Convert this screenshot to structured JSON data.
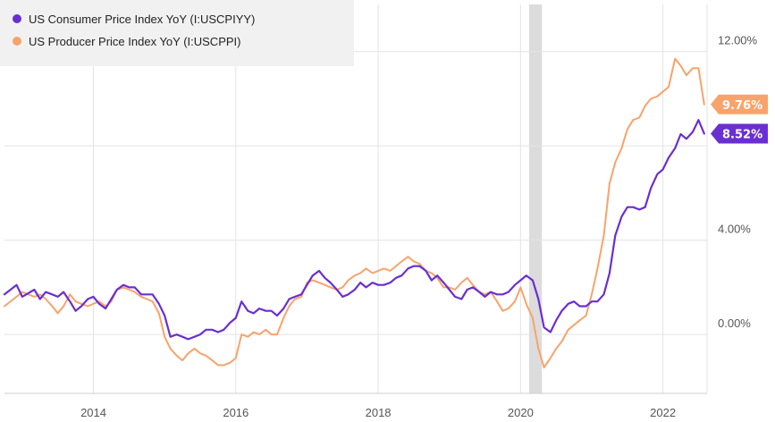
{
  "chart_data": {
    "type": "line",
    "title": "",
    "xlabel": "",
    "ylabel": "",
    "xlim": [
      2012.75,
      2022.62
    ],
    "ylim": [
      -2.5,
      14.0
    ],
    "grid": true,
    "legend_position": "top-left",
    "x_ticks": [
      {
        "value": 2014,
        "label": "2014"
      },
      {
        "value": 2016,
        "label": "2016"
      },
      {
        "value": 2018,
        "label": "2018"
      },
      {
        "value": 2020,
        "label": "2020"
      },
      {
        "value": 2022,
        "label": "2022"
      }
    ],
    "y_ticks": [
      {
        "value": 0,
        "label": "0.00%"
      },
      {
        "value": 4,
        "label": "4.00%"
      },
      {
        "value": 8,
        "label": ""
      },
      {
        "value": 12,
        "label": "12.00%"
      }
    ],
    "shaded_ranges": [
      [
        2020.12,
        2020.3
      ]
    ],
    "series": [
      {
        "name": "US Consumer Price Index YoY (I:USCPIYY)",
        "color": "#6a2fd1",
        "last_value_label": "8.52%",
        "points": [
          [
            2012.75,
            1.7
          ],
          [
            2012.92,
            2.1
          ],
          [
            2013.0,
            1.6
          ],
          [
            2013.17,
            1.9
          ],
          [
            2013.25,
            1.5
          ],
          [
            2013.33,
            1.8
          ],
          [
            2013.42,
            1.7
          ],
          [
            2013.5,
            1.6
          ],
          [
            2013.58,
            1.8
          ],
          [
            2013.67,
            1.4
          ],
          [
            2013.75,
            1.0
          ],
          [
            2013.83,
            1.2
          ],
          [
            2013.92,
            1.5
          ],
          [
            2014.0,
            1.6
          ],
          [
            2014.08,
            1.3
          ],
          [
            2014.17,
            1.1
          ],
          [
            2014.25,
            1.5
          ],
          [
            2014.33,
            1.9
          ],
          [
            2014.42,
            2.1
          ],
          [
            2014.5,
            2.0
          ],
          [
            2014.58,
            2.0
          ],
          [
            2014.67,
            1.7
          ],
          [
            2014.75,
            1.7
          ],
          [
            2014.83,
            1.7
          ],
          [
            2014.92,
            1.3
          ],
          [
            2015.0,
            0.8
          ],
          [
            2015.08,
            -0.1
          ],
          [
            2015.17,
            0.0
          ],
          [
            2015.25,
            -0.1
          ],
          [
            2015.33,
            -0.2
          ],
          [
            2015.42,
            -0.1
          ],
          [
            2015.5,
            0.0
          ],
          [
            2015.58,
            0.2
          ],
          [
            2015.67,
            0.2
          ],
          [
            2015.75,
            0.1
          ],
          [
            2015.83,
            0.2
          ],
          [
            2015.92,
            0.5
          ],
          [
            2016.0,
            0.7
          ],
          [
            2016.08,
            1.4
          ],
          [
            2016.17,
            1.0
          ],
          [
            2016.25,
            0.9
          ],
          [
            2016.33,
            1.1
          ],
          [
            2016.42,
            1.0
          ],
          [
            2016.5,
            1.0
          ],
          [
            2016.58,
            0.8
          ],
          [
            2016.67,
            1.1
          ],
          [
            2016.75,
            1.5
          ],
          [
            2016.83,
            1.6
          ],
          [
            2016.92,
            1.7
          ],
          [
            2017.0,
            2.1
          ],
          [
            2017.08,
            2.5
          ],
          [
            2017.17,
            2.7
          ],
          [
            2017.25,
            2.4
          ],
          [
            2017.33,
            2.2
          ],
          [
            2017.42,
            1.9
          ],
          [
            2017.5,
            1.6
          ],
          [
            2017.58,
            1.7
          ],
          [
            2017.67,
            1.9
          ],
          [
            2017.75,
            2.2
          ],
          [
            2017.83,
            2.0
          ],
          [
            2017.92,
            2.2
          ],
          [
            2018.0,
            2.1
          ],
          [
            2018.08,
            2.1
          ],
          [
            2018.17,
            2.2
          ],
          [
            2018.25,
            2.4
          ],
          [
            2018.33,
            2.5
          ],
          [
            2018.42,
            2.8
          ],
          [
            2018.5,
            2.9
          ],
          [
            2018.58,
            2.9
          ],
          [
            2018.67,
            2.7
          ],
          [
            2018.75,
            2.3
          ],
          [
            2018.83,
            2.5
          ],
          [
            2018.92,
            2.2
          ],
          [
            2019.0,
            1.9
          ],
          [
            2019.08,
            1.6
          ],
          [
            2019.17,
            1.5
          ],
          [
            2019.25,
            1.9
          ],
          [
            2019.33,
            2.0
          ],
          [
            2019.42,
            1.8
          ],
          [
            2019.5,
            1.6
          ],
          [
            2019.58,
            1.8
          ],
          [
            2019.67,
            1.7
          ],
          [
            2019.75,
            1.7
          ],
          [
            2019.83,
            1.8
          ],
          [
            2019.92,
            2.1
          ],
          [
            2020.0,
            2.3
          ],
          [
            2020.08,
            2.5
          ],
          [
            2020.17,
            2.3
          ],
          [
            2020.25,
            1.5
          ],
          [
            2020.33,
            0.3
          ],
          [
            2020.42,
            0.1
          ],
          [
            2020.5,
            0.6
          ],
          [
            2020.58,
            1.0
          ],
          [
            2020.67,
            1.3
          ],
          [
            2020.75,
            1.4
          ],
          [
            2020.83,
            1.2
          ],
          [
            2020.92,
            1.2
          ],
          [
            2021.0,
            1.4
          ],
          [
            2021.08,
            1.4
          ],
          [
            2021.17,
            1.7
          ],
          [
            2021.25,
            2.6
          ],
          [
            2021.33,
            4.2
          ],
          [
            2021.42,
            5.0
          ],
          [
            2021.5,
            5.4
          ],
          [
            2021.58,
            5.4
          ],
          [
            2021.67,
            5.3
          ],
          [
            2021.75,
            5.4
          ],
          [
            2021.83,
            6.2
          ],
          [
            2021.92,
            6.8
          ],
          [
            2022.0,
            7.0
          ],
          [
            2022.08,
            7.5
          ],
          [
            2022.17,
            7.9
          ],
          [
            2022.25,
            8.5
          ],
          [
            2022.33,
            8.3
          ],
          [
            2022.42,
            8.6
          ],
          [
            2022.5,
            9.1
          ],
          [
            2022.58,
            8.52
          ]
        ]
      },
      {
        "name": "US Producer Price Index YoY (I:USCPPI)",
        "color": "#f7a36b",
        "last_value_label": "9.76%",
        "points": [
          [
            2012.75,
            1.2
          ],
          [
            2012.92,
            1.6
          ],
          [
            2013.0,
            1.8
          ],
          [
            2013.17,
            1.6
          ],
          [
            2013.25,
            1.7
          ],
          [
            2013.33,
            1.5
          ],
          [
            2013.42,
            1.2
          ],
          [
            2013.5,
            0.9
          ],
          [
            2013.58,
            1.2
          ],
          [
            2013.67,
            1.7
          ],
          [
            2013.75,
            1.4
          ],
          [
            2013.83,
            1.3
          ],
          [
            2013.92,
            1.2
          ],
          [
            2014.0,
            1.3
          ],
          [
            2014.08,
            1.4
          ],
          [
            2014.17,
            1.2
          ],
          [
            2014.25,
            1.4
          ],
          [
            2014.33,
            1.9
          ],
          [
            2014.42,
            2.0
          ],
          [
            2014.5,
            1.9
          ],
          [
            2014.58,
            1.8
          ],
          [
            2014.67,
            1.6
          ],
          [
            2014.75,
            1.5
          ],
          [
            2014.83,
            1.4
          ],
          [
            2014.92,
            0.9
          ],
          [
            2015.0,
            -0.1
          ],
          [
            2015.08,
            -0.6
          ],
          [
            2015.17,
            -0.9
          ],
          [
            2015.25,
            -1.1
          ],
          [
            2015.33,
            -0.8
          ],
          [
            2015.42,
            -0.6
          ],
          [
            2015.5,
            -0.8
          ],
          [
            2015.58,
            -0.9
          ],
          [
            2015.67,
            -1.1
          ],
          [
            2015.75,
            -1.3
          ],
          [
            2015.83,
            -1.3
          ],
          [
            2015.92,
            -1.2
          ],
          [
            2016.0,
            -1.0
          ],
          [
            2016.08,
            0.0
          ],
          [
            2016.17,
            -0.1
          ],
          [
            2016.25,
            0.1
          ],
          [
            2016.33,
            0.0
          ],
          [
            2016.42,
            0.2
          ],
          [
            2016.5,
            0.0
          ],
          [
            2016.58,
            0.0
          ],
          [
            2016.67,
            0.7
          ],
          [
            2016.75,
            1.2
          ],
          [
            2016.83,
            1.5
          ],
          [
            2016.92,
            1.6
          ],
          [
            2017.0,
            2.2
          ],
          [
            2017.08,
            2.3
          ],
          [
            2017.17,
            2.2
          ],
          [
            2017.25,
            2.1
          ],
          [
            2017.33,
            2.0
          ],
          [
            2017.42,
            1.9
          ],
          [
            2017.5,
            2.0
          ],
          [
            2017.58,
            2.3
          ],
          [
            2017.67,
            2.5
          ],
          [
            2017.75,
            2.6
          ],
          [
            2017.83,
            2.8
          ],
          [
            2017.92,
            2.6
          ],
          [
            2018.0,
            2.7
          ],
          [
            2018.08,
            2.8
          ],
          [
            2018.17,
            2.7
          ],
          [
            2018.25,
            2.9
          ],
          [
            2018.33,
            3.1
          ],
          [
            2018.42,
            3.3
          ],
          [
            2018.5,
            3.1
          ],
          [
            2018.58,
            3.0
          ],
          [
            2018.67,
            2.7
          ],
          [
            2018.75,
            2.6
          ],
          [
            2018.83,
            2.4
          ],
          [
            2018.92,
            2.0
          ],
          [
            2019.0,
            2.0
          ],
          [
            2019.08,
            1.9
          ],
          [
            2019.17,
            2.2
          ],
          [
            2019.25,
            2.4
          ],
          [
            2019.33,
            2.1
          ],
          [
            2019.42,
            1.8
          ],
          [
            2019.5,
            1.7
          ],
          [
            2019.58,
            1.8
          ],
          [
            2019.67,
            1.4
          ],
          [
            2019.75,
            1.0
          ],
          [
            2019.83,
            1.1
          ],
          [
            2019.92,
            1.4
          ],
          [
            2020.0,
            2.0
          ],
          [
            2020.08,
            1.3
          ],
          [
            2020.17,
            0.7
          ],
          [
            2020.25,
            -0.6
          ],
          [
            2020.33,
            -1.4
          ],
          [
            2020.42,
            -1.0
          ],
          [
            2020.5,
            -0.6
          ],
          [
            2020.58,
            -0.3
          ],
          [
            2020.67,
            0.2
          ],
          [
            2020.75,
            0.4
          ],
          [
            2020.83,
            0.6
          ],
          [
            2020.92,
            0.8
          ],
          [
            2021.0,
            1.7
          ],
          [
            2021.08,
            2.8
          ],
          [
            2021.17,
            4.2
          ],
          [
            2021.25,
            6.4
          ],
          [
            2021.33,
            7.3
          ],
          [
            2021.42,
            7.9
          ],
          [
            2021.5,
            8.7
          ],
          [
            2021.58,
            9.1
          ],
          [
            2021.67,
            9.2
          ],
          [
            2021.75,
            9.7
          ],
          [
            2021.83,
            10.0
          ],
          [
            2021.92,
            10.1
          ],
          [
            2022.0,
            10.3
          ],
          [
            2022.08,
            10.5
          ],
          [
            2022.17,
            11.7
          ],
          [
            2022.25,
            11.4
          ],
          [
            2022.33,
            11.0
          ],
          [
            2022.42,
            11.3
          ],
          [
            2022.5,
            11.3
          ],
          [
            2022.58,
            9.76
          ]
        ]
      }
    ]
  }
}
